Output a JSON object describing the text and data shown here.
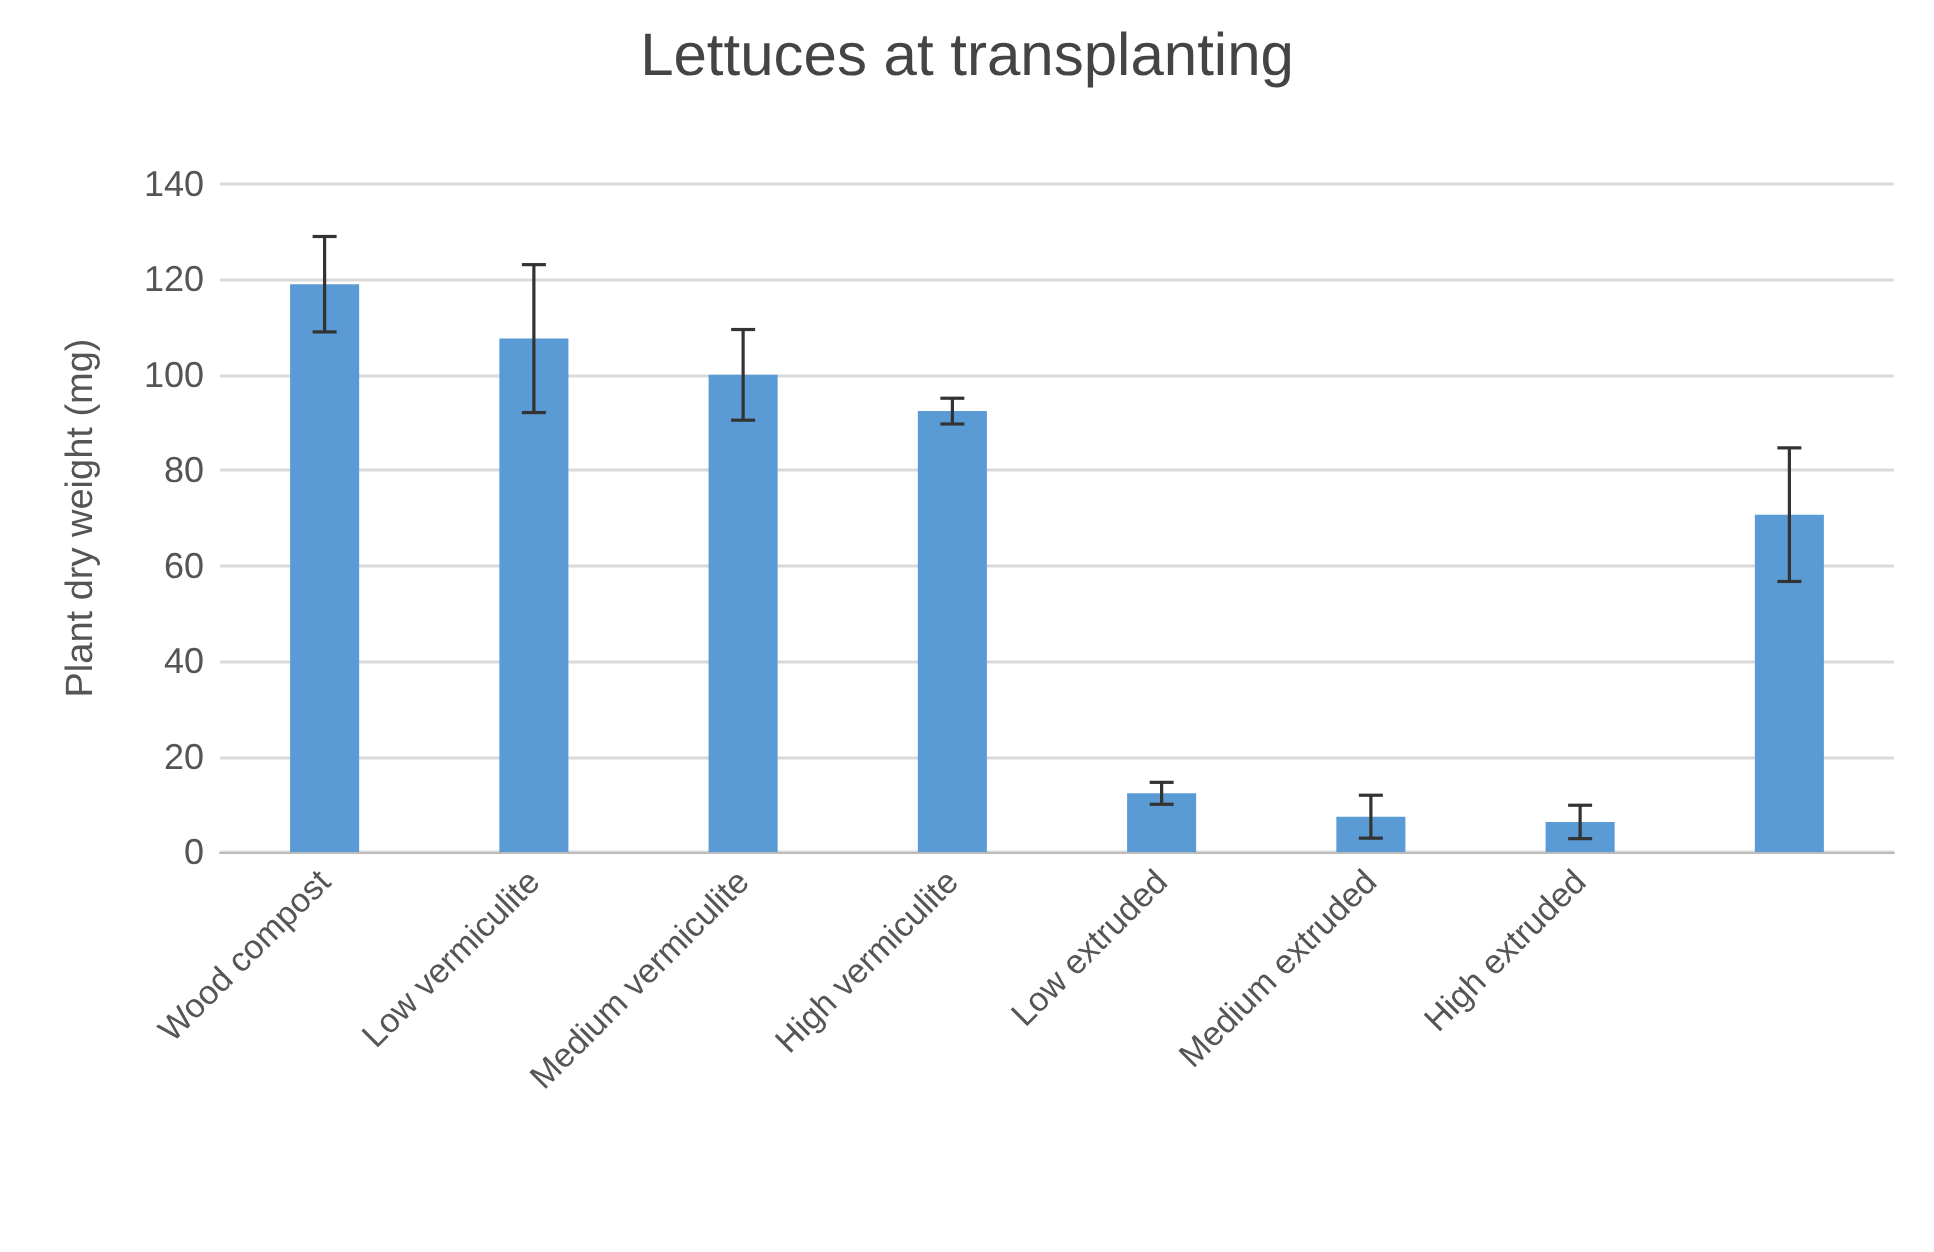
{
  "chart_data": {
    "type": "bar",
    "title": "Lettuces at transplanting",
    "ylabel": "Plant dry weight (mg)",
    "categories": [
      "Wood compost",
      "Low vermiculite",
      "Medium vermiculite",
      "High vermiculite",
      "Low extruded",
      "Medium extruded",
      "High extruded",
      null
    ],
    "values": [
      119,
      107.6,
      100,
      92.4,
      12.3,
      7.4,
      6.3,
      70.7
    ],
    "errors": [
      10,
      15.5,
      9.5,
      2.7,
      2.3,
      4.5,
      3.5,
      14
    ],
    "color": "#5b9bd5",
    "ylim": [
      0,
      140
    ],
    "yticks": [
      0,
      20,
      40,
      60,
      80,
      100,
      120,
      140
    ],
    "grid": "y"
  }
}
